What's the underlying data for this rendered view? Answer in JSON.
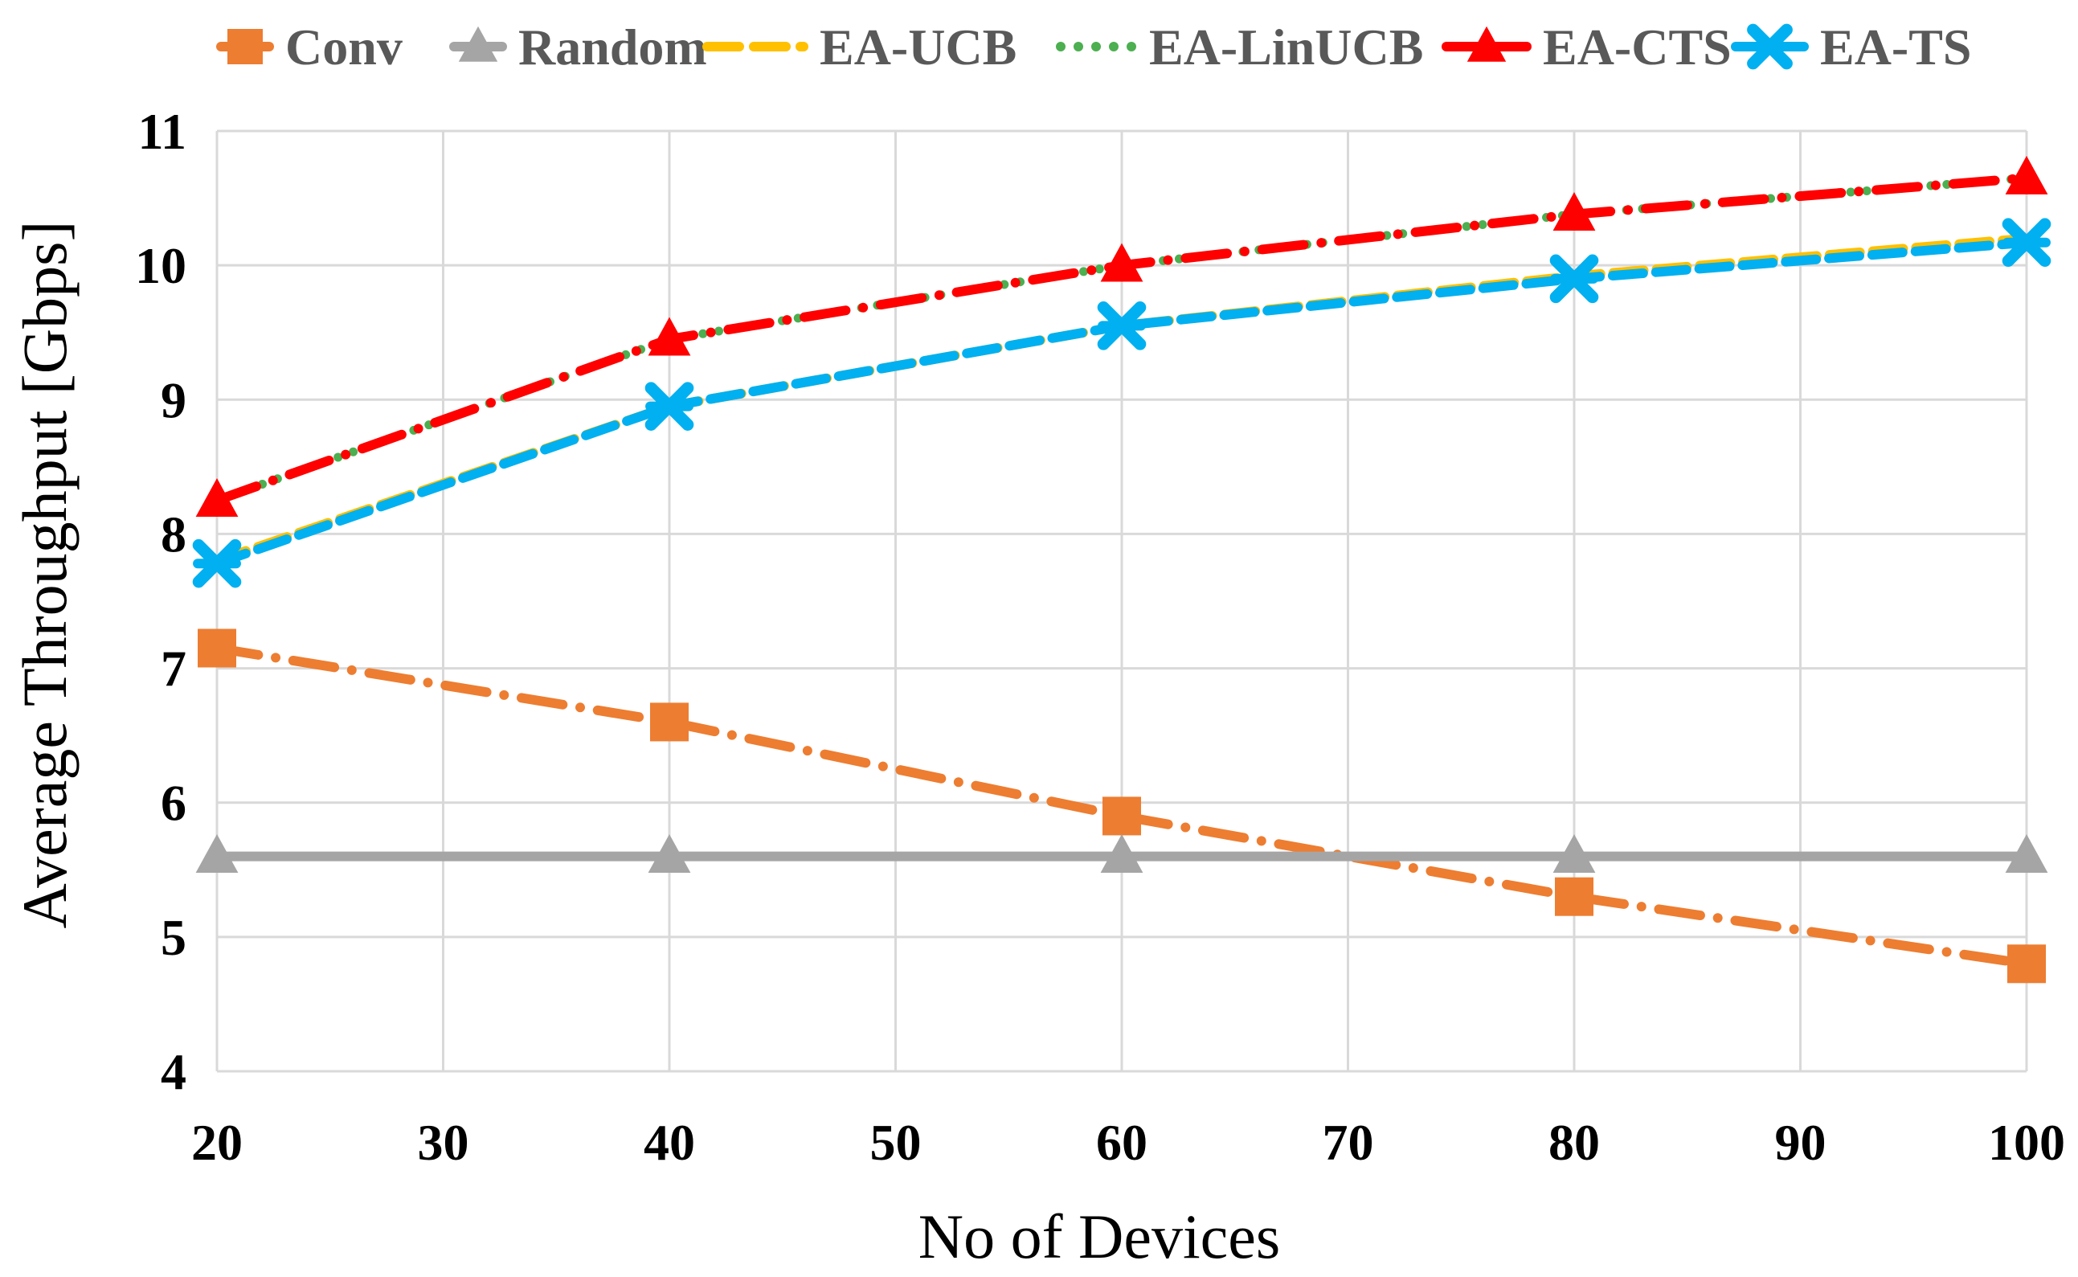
{
  "chart_data": {
    "type": "line",
    "title": "",
    "xlabel": "No of Devices",
    "ylabel": "Average Throughput [Gbps]",
    "x": [
      20,
      40,
      60,
      80,
      100
    ],
    "xlim": [
      20,
      100
    ],
    "ylim": [
      4,
      11
    ],
    "x_ticks": [
      20,
      30,
      40,
      50,
      60,
      70,
      80,
      90,
      100
    ],
    "y_ticks": [
      4,
      5,
      6,
      7,
      8,
      9,
      10,
      11
    ],
    "grid": true,
    "legend_position": "top",
    "series": [
      {
        "name": "Conv",
        "color": "#ED7D31",
        "marker": "square",
        "dash": "dash-dot",
        "values": [
          7.15,
          6.6,
          5.9,
          5.3,
          4.8
        ]
      },
      {
        "name": "Random",
        "color": "#A5A5A5",
        "marker": "triangle",
        "dash": "solid",
        "values": [
          5.6,
          5.6,
          5.6,
          5.6,
          5.6
        ]
      },
      {
        "name": "EA-UCB",
        "color": "#FFC000",
        "marker": "none",
        "dash": "dash",
        "values": [
          7.8,
          8.95,
          9.55,
          9.92,
          10.2
        ]
      },
      {
        "name": "EA-LinUCB",
        "color": "#4CAF50",
        "marker": "none",
        "dash": "dot",
        "values": [
          8.25,
          9.45,
          10.0,
          10.38,
          10.65
        ]
      },
      {
        "name": "EA-CTS",
        "color": "#FF0000",
        "marker": "triangle",
        "dash": "dash-dot",
        "values": [
          8.25,
          9.45,
          10.0,
          10.38,
          10.65
        ]
      },
      {
        "name": "EA-TS",
        "color": "#00B0F0",
        "marker": "cross",
        "dash": "dash",
        "values": [
          7.78,
          8.95,
          9.55,
          9.9,
          10.17
        ]
      }
    ]
  }
}
